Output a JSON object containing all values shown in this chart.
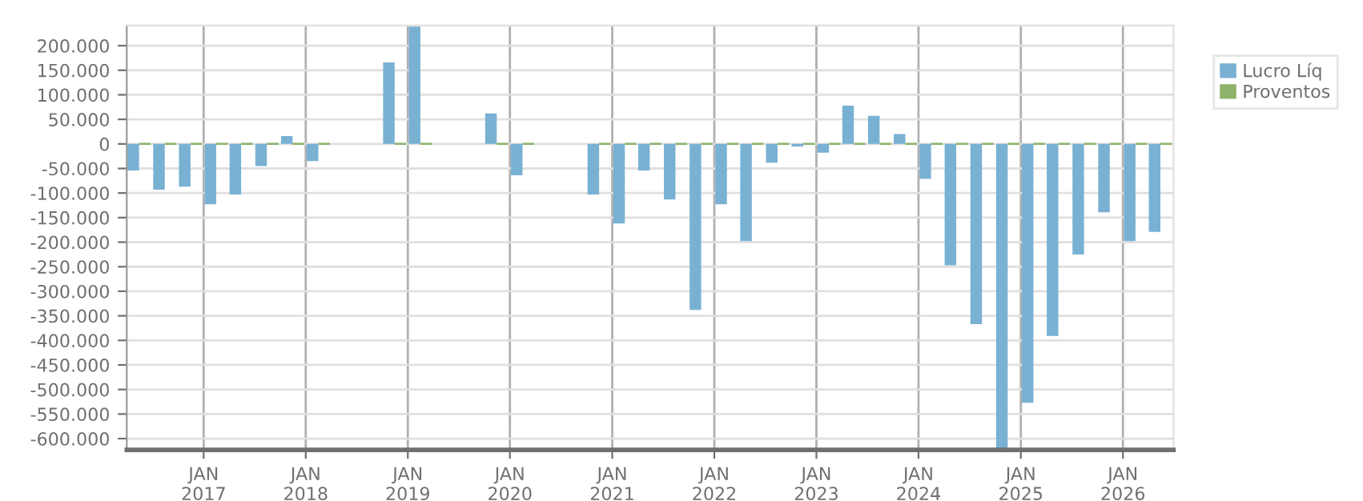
{
  "chart_data": {
    "type": "bar",
    "x": [
      "2016-05-15",
      "2016-08-15",
      "2016-11-15",
      "2017-02-15",
      "2017-05-15",
      "2017-08-15",
      "2017-11-15",
      "2018-02-15",
      "2018-05-15",
      "2018-08-15",
      "2018-11-15",
      "2019-02-15",
      "2019-05-15",
      "2019-08-15",
      "2019-11-15",
      "2020-02-15",
      "2020-05-15",
      "2020-08-15",
      "2020-11-15",
      "2021-02-15",
      "2021-05-15",
      "2021-08-15",
      "2021-11-15",
      "2022-02-15",
      "2022-05-15",
      "2022-08-15",
      "2022-11-15",
      "2023-02-15",
      "2023-05-15",
      "2023-08-15",
      "2023-11-15",
      "2024-02-15",
      "2024-05-15",
      "2024-08-15",
      "2024-11-15",
      "2025-02-15",
      "2025-05-15",
      "2025-08-15",
      "2025-11-15",
      "2026-02-15",
      "2026-05-15"
    ],
    "series": [
      {
        "name": "Lucro Líq",
        "color": "#79b1d3",
        "values": [
          -54000,
          -93000,
          -87000,
          -123000,
          -103000,
          -45000,
          16000,
          -35000,
          null,
          null,
          166000,
          239000,
          null,
          null,
          62000,
          -64000,
          null,
          null,
          -103000,
          -162000,
          -54000,
          -113000,
          -338000,
          -123000,
          -198000,
          -38000,
          -5000,
          -18000,
          78000,
          57000,
          20000,
          -71000,
          -247000,
          -367000,
          -620000,
          -527000,
          -391000,
          -225000,
          -139000,
          -198000,
          -179000
        ]
      },
      {
        "name": "Proventos",
        "color": "#8db36b",
        "values": [
          0,
          0,
          0,
          0,
          0,
          0,
          0,
          0,
          null,
          null,
          0,
          0,
          null,
          null,
          0,
          0,
          null,
          null,
          0,
          0,
          0,
          0,
          0,
          0,
          0,
          0,
          0,
          0,
          0,
          0,
          0,
          0,
          0,
          0,
          0,
          0,
          0,
          0,
          0,
          0,
          0
        ]
      }
    ],
    "xlim": [
      "2016-04-01",
      "2026-07-01"
    ],
    "xticks": [
      {
        "value": "2017-01-01",
        "label": "JAN\n2017"
      },
      {
        "value": "2018-01-01",
        "label": "JAN\n2018"
      },
      {
        "value": "2019-01-01",
        "label": "JAN\n2019"
      },
      {
        "value": "2020-01-01",
        "label": "JAN\n2020"
      },
      {
        "value": "2021-01-01",
        "label": "JAN\n2021"
      },
      {
        "value": "2022-01-01",
        "label": "JAN\n2022"
      },
      {
        "value": "2023-01-01",
        "label": "JAN\n2023"
      },
      {
        "value": "2024-01-01",
        "label": "JAN\n2024"
      },
      {
        "value": "2025-01-01",
        "label": "JAN\n2025"
      },
      {
        "value": "2026-01-01",
        "label": "JAN\n2026"
      }
    ],
    "ylim": [
      -623000,
      241000
    ],
    "yticks": [
      {
        "value": 200000,
        "label": "200.000"
      },
      {
        "value": 150000,
        "label": "150.000"
      },
      {
        "value": 100000,
        "label": "100.000"
      },
      {
        "value": 50000,
        "label": "50.000"
      },
      0,
      {
        "value": -50000,
        "label": "-50.000"
      },
      {
        "value": -100000,
        "label": "-100.000"
      },
      {
        "value": -150000,
        "label": "-150.000"
      },
      {
        "value": -200000,
        "label": "-200.000"
      },
      {
        "value": -250000,
        "label": "-250.000"
      },
      {
        "value": -300000,
        "label": "-300.000"
      },
      {
        "value": -350000,
        "label": "-350.000"
      },
      {
        "value": -400000,
        "label": "-400.000"
      },
      {
        "value": -450000,
        "label": "-450.000"
      },
      {
        "value": -500000,
        "label": "-500.000"
      },
      {
        "value": -550000,
        "label": "-550.000"
      },
      {
        "value": -600000,
        "label": "-600.000"
      }
    ],
    "grid": true,
    "legend": "top right"
  }
}
